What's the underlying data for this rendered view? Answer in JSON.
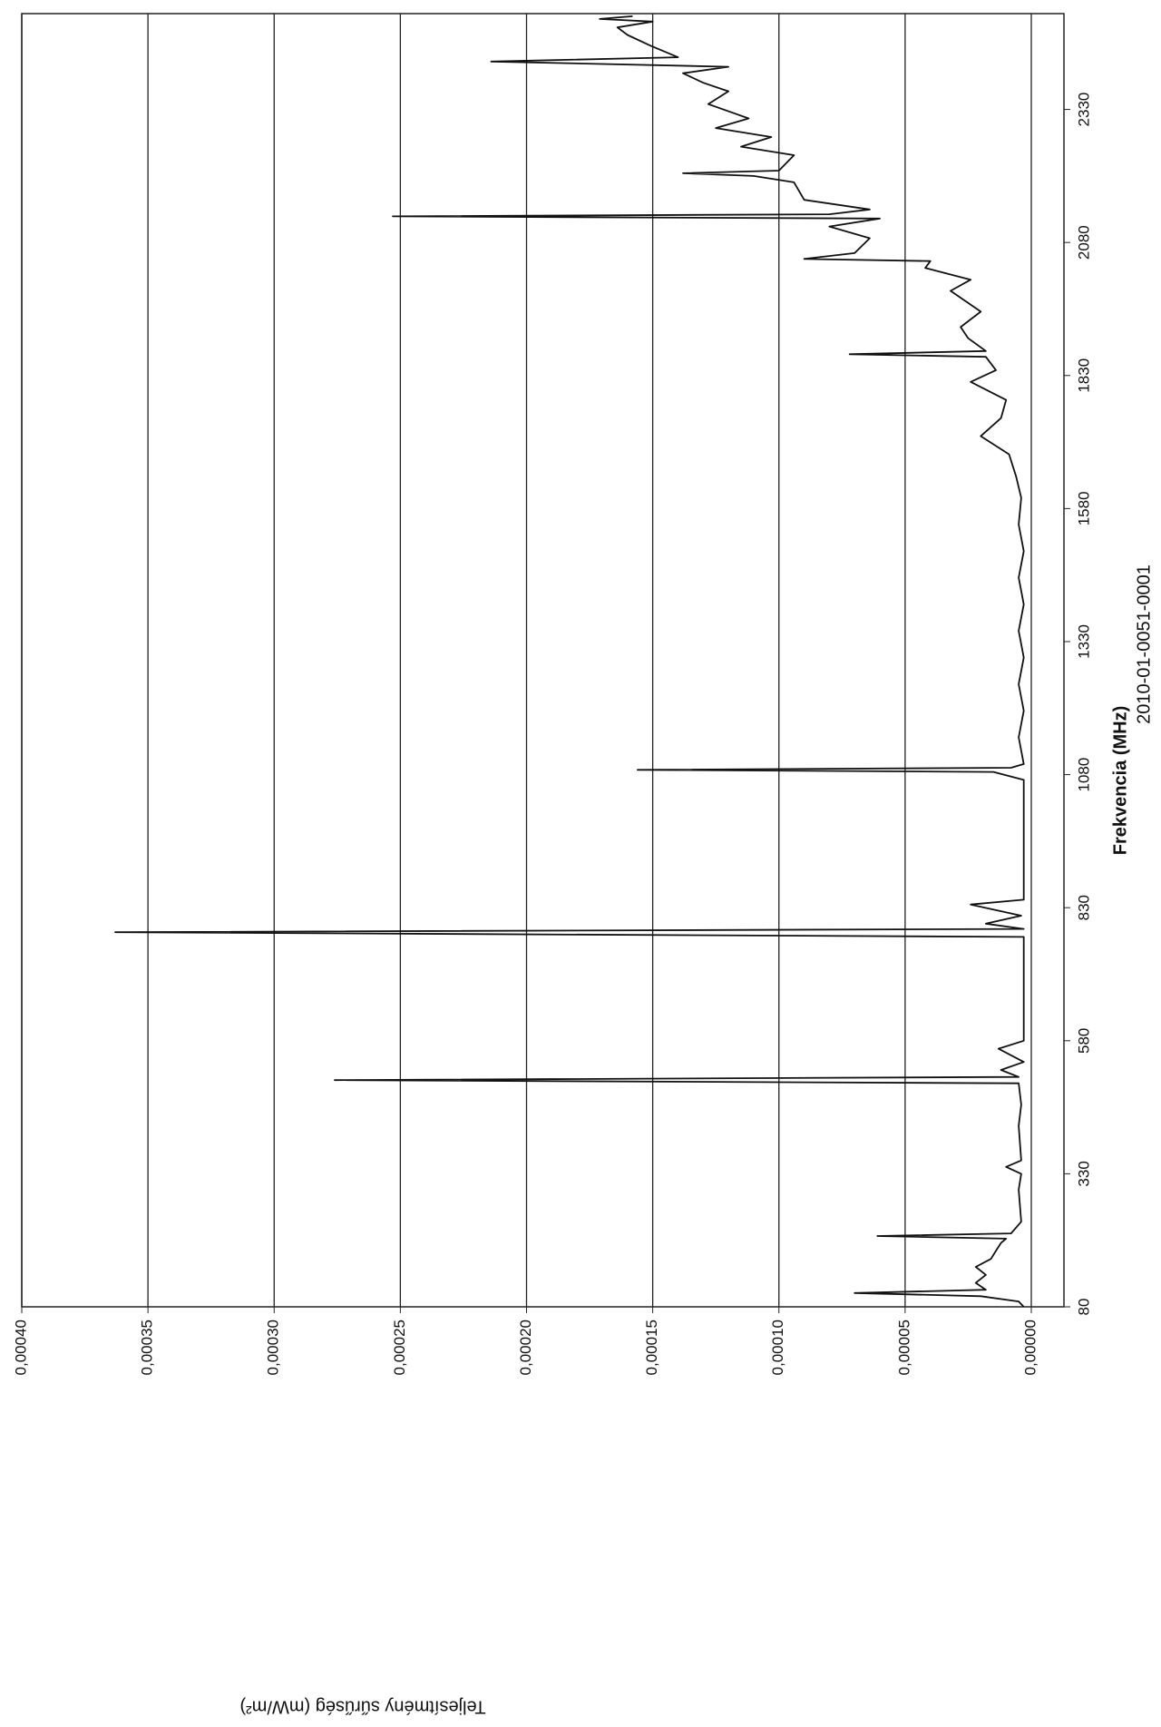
{
  "chart_data": {
    "type": "line",
    "title": "2010-01-0051-0001",
    "x_label": "Frekvencia (MHz)",
    "y_label": "Teljesítmény sűrűség (mW/m²)",
    "x": [
      80,
      90,
      100,
      106,
      112,
      125,
      140,
      155,
      170,
      185,
      200,
      208,
      213,
      218,
      240,
      300,
      330,
      343,
      355,
      420,
      460,
      500,
      506,
      512,
      525,
      540,
      565,
      580,
      700,
      775,
      784,
      790,
      800,
      815,
      836,
      845,
      1070,
      1085,
      1089,
      1093,
      1100,
      1150,
      1200,
      1250,
      1300,
      1350,
      1400,
      1450,
      1500,
      1550,
      1600,
      1640,
      1682,
      1716,
      1750,
      1784,
      1818,
      1840,
      1865,
      1870,
      1876,
      1900,
      1921,
      1950,
      1989,
      2010,
      2032,
      2045,
      2049,
      2060,
      2088,
      2110,
      2125,
      2129,
      2133,
      2142,
      2160,
      2193,
      2205,
      2210,
      2215,
      2244,
      2260,
      2278,
      2295,
      2313,
      2340,
      2364,
      2380,
      2398,
      2410,
      2420,
      2428,
      2450,
      2470,
      2484,
      2495,
      2500,
      2505
    ],
    "series": [
      {
        "name": "Teljesítmény sűrűség",
        "color": "#111111",
        "values": [
          3e-06,
          5e-06,
          2e-05,
          7e-05,
          1.8e-05,
          2.2e-05,
          1.8e-05,
          2.2e-05,
          1.6e-05,
          1.4e-05,
          1.2e-05,
          1e-05,
          6.1e-05,
          8e-06,
          4e-06,
          5e-06,
          4e-06,
          1e-05,
          4e-06,
          5e-06,
          4e-06,
          5e-06,
          0.000276,
          5e-06,
          1.2e-05,
          3e-06,
          1.3e-05,
          3e-06,
          3e-06,
          3e-06,
          0.000363,
          3e-06,
          1.8e-05,
          4e-06,
          2.4e-05,
          3e-06,
          3e-06,
          1.5e-05,
          0.000156,
          8e-06,
          3e-06,
          5e-06,
          3e-06,
          5e-06,
          3e-06,
          5e-06,
          3e-06,
          5e-06,
          3e-06,
          5e-06,
          4e-06,
          6e-06,
          8.8e-06,
          2e-05,
          1.2e-05,
          1e-05,
          2.4e-05,
          1.4e-05,
          1.8e-05,
          7.2e-05,
          1.8e-05,
          2.5e-05,
          2.8e-05,
          2e-05,
          3.2e-05,
          2.4e-05,
          4.2e-05,
          4e-05,
          9e-05,
          7e-05,
          6.4e-05,
          8e-05,
          6e-05,
          0.000253,
          8e-05,
          6.4e-05,
          9e-05,
          9.4e-05,
          0.00011,
          0.000138,
          0.0001,
          9.4e-05,
          0.000115,
          0.000103,
          0.000125,
          0.000112,
          0.000128,
          0.00012,
          0.00013,
          0.000138,
          0.00012,
          0.000214,
          0.00014,
          0.000151,
          0.00016,
          0.000164,
          0.00015,
          0.000171,
          0.000158
        ]
      }
    ],
    "xlim": [
      80,
      2510
    ],
    "xticks": [
      80,
      330,
      580,
      830,
      1080,
      1330,
      1580,
      1830,
      2080,
      2330
    ],
    "ylim": [
      0,
      0.0004
    ],
    "yticks": [
      {
        "value": 0,
        "label": "0,00000"
      },
      {
        "value": 5e-05,
        "label": "0,00005"
      },
      {
        "value": 0.0001,
        "label": "0,00010"
      },
      {
        "value": 0.00015,
        "label": "0,00015"
      },
      {
        "value": 0.0002,
        "label": "0,00020"
      },
      {
        "value": 0.00025,
        "label": "0,00025"
      },
      {
        "value": 0.0003,
        "label": "0,00030"
      },
      {
        "value": 0.00035,
        "label": "0,00035"
      },
      {
        "value": 0.0004,
        "label": "0,00040"
      }
    ],
    "grid": true
  }
}
